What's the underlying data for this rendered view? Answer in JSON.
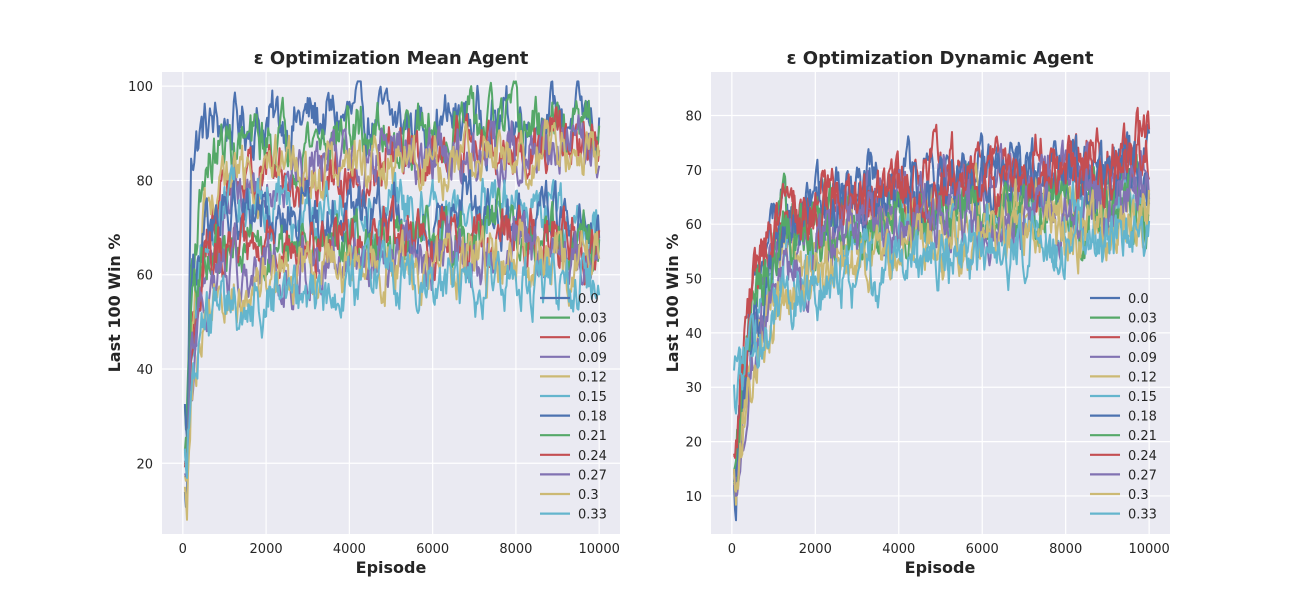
{
  "chart_data": [
    {
      "type": "line",
      "title": "ε Optimization Mean Agent",
      "xlabel": "Episode",
      "ylabel": "Last 100 Win %",
      "xlim": [
        -500,
        10500
      ],
      "ylim": [
        5,
        103
      ],
      "x_ticks": [
        0,
        2000,
        4000,
        6000,
        8000,
        10000
      ],
      "y_ticks": [
        20,
        40,
        60,
        80,
        100
      ],
      "grid": true,
      "legend_position": "lower-right",
      "series": [
        {
          "name": "0.0",
          "color": "#4C72B0",
          "x": [
            100,
            200,
            500,
            1000,
            2000,
            3000,
            4000,
            5000,
            6000,
            7000,
            8000,
            9000,
            10000
          ],
          "values": [
            12,
            87,
            91,
            92,
            92,
            93,
            93,
            92,
            92,
            93,
            93,
            94,
            92
          ]
        },
        {
          "name": "0.03",
          "color": "#55A868",
          "x": [
            100,
            200,
            500,
            1000,
            2000,
            3000,
            4000,
            5000,
            6000,
            7000,
            8000,
            9000,
            10000
          ],
          "values": [
            30,
            60,
            82,
            87,
            88,
            89,
            90,
            90,
            90,
            91,
            91,
            91,
            90
          ]
        },
        {
          "name": "0.06",
          "color": "#C44E52",
          "x": [
            100,
            200,
            500,
            1000,
            2000,
            3000,
            4000,
            5000,
            6000,
            7000,
            8000,
            9000,
            10000
          ],
          "values": [
            17,
            40,
            65,
            80,
            82,
            80,
            82,
            84,
            85,
            87,
            86,
            88,
            87
          ]
        },
        {
          "name": "0.09",
          "color": "#8172B2",
          "x": [
            100,
            200,
            500,
            1000,
            2000,
            3000,
            4000,
            5000,
            6000,
            7000,
            8000,
            9000,
            10000
          ],
          "values": [
            18,
            30,
            55,
            75,
            82,
            84,
            85,
            84,
            85,
            86,
            86,
            87,
            86
          ]
        },
        {
          "name": "0.12",
          "color": "#CCB974",
          "x": [
            100,
            200,
            500,
            1000,
            2000,
            3000,
            4000,
            5000,
            6000,
            7000,
            8000,
            9000,
            10000
          ],
          "values": [
            15,
            45,
            70,
            80,
            81,
            82,
            82,
            83,
            84,
            84,
            85,
            85,
            84
          ]
        },
        {
          "name": "0.15",
          "color": "#64B5CD",
          "x": [
            100,
            200,
            500,
            1000,
            2000,
            3000,
            4000,
            5000,
            6000,
            7000,
            8000,
            9000,
            10000
          ],
          "values": [
            20,
            50,
            68,
            72,
            74,
            73,
            72,
            73,
            73,
            74,
            74,
            73,
            72
          ]
        },
        {
          "name": "0.18",
          "color": "#4C72B0",
          "x": [
            100,
            200,
            500,
            1000,
            2000,
            3000,
            4000,
            5000,
            6000,
            7000,
            8000,
            9000,
            10000
          ],
          "values": [
            30,
            60,
            70,
            72,
            73,
            74,
            73,
            73,
            72,
            72,
            72,
            71,
            70
          ]
        },
        {
          "name": "0.21",
          "color": "#55A868",
          "x": [
            100,
            200,
            500,
            1000,
            2000,
            3000,
            4000,
            5000,
            6000,
            7000,
            8000,
            9000,
            10000
          ],
          "values": [
            20,
            50,
            62,
            65,
            66,
            67,
            67,
            68,
            68,
            68,
            67,
            68,
            67
          ]
        },
        {
          "name": "0.24",
          "color": "#C44E52",
          "x": [
            100,
            200,
            500,
            1000,
            2000,
            3000,
            4000,
            5000,
            6000,
            7000,
            8000,
            9000,
            10000
          ],
          "values": [
            17,
            45,
            60,
            64,
            65,
            66,
            67,
            67,
            67,
            67,
            68,
            68,
            67
          ]
        },
        {
          "name": "0.27",
          "color": "#8172B2",
          "x": [
            100,
            200,
            500,
            1000,
            2000,
            3000,
            4000,
            5000,
            6000,
            7000,
            8000,
            9000,
            10000
          ],
          "values": [
            15,
            40,
            55,
            60,
            62,
            63,
            64,
            64,
            64,
            64,
            65,
            65,
            64
          ]
        },
        {
          "name": "0.3",
          "color": "#CCB974",
          "x": [
            100,
            200,
            500,
            1000,
            2000,
            3000,
            4000,
            5000,
            6000,
            7000,
            8000,
            9000,
            10000
          ],
          "values": [
            12,
            35,
            50,
            55,
            58,
            60,
            61,
            61,
            62,
            62,
            62,
            62,
            62
          ]
        },
        {
          "name": "0.33",
          "color": "#64B5CD",
          "x": [
            100,
            200,
            500,
            1000,
            2000,
            3000,
            4000,
            5000,
            6000,
            7000,
            8000,
            9000,
            10000
          ],
          "values": [
            20,
            40,
            48,
            52,
            55,
            56,
            56,
            57,
            57,
            58,
            58,
            58,
            58
          ]
        }
      ]
    },
    {
      "type": "line",
      "title": "ε Optimization Dynamic Agent",
      "xlabel": "Episode",
      "ylabel": "Last 100 Win %",
      "xlim": [
        -500,
        10500
      ],
      "ylim": [
        3,
        88
      ],
      "x_ticks": [
        0,
        2000,
        4000,
        6000,
        8000,
        10000
      ],
      "y_ticks": [
        10,
        20,
        30,
        40,
        50,
        60,
        70,
        80
      ],
      "grid": true,
      "legend_position": "lower-right",
      "series": [
        {
          "name": "0.0",
          "color": "#4C72B0",
          "x": [
            100,
            200,
            500,
            1000,
            2000,
            3000,
            4000,
            5000,
            6000,
            7000,
            8000,
            9000,
            10000
          ],
          "values": [
            10,
            25,
            45,
            60,
            64,
            66,
            67,
            68,
            69,
            70,
            70,
            71,
            71
          ]
        },
        {
          "name": "0.03",
          "color": "#55A868",
          "x": [
            100,
            200,
            500,
            1000,
            2000,
            3000,
            4000,
            5000,
            6000,
            7000,
            8000,
            9000,
            10000
          ],
          "values": [
            10,
            28,
            48,
            58,
            61,
            62,
            63,
            63,
            64,
            64,
            65,
            65,
            65
          ]
        },
        {
          "name": "0.06",
          "color": "#C44E52",
          "x": [
            100,
            200,
            500,
            1000,
            2000,
            3000,
            4000,
            5000,
            6000,
            7000,
            8000,
            9000,
            10000
          ],
          "values": [
            15,
            30,
            52,
            60,
            64,
            67,
            68,
            70,
            71,
            72,
            72,
            73,
            76
          ]
        },
        {
          "name": "0.09",
          "color": "#8172B2",
          "x": [
            100,
            200,
            500,
            1000,
            2000,
            3000,
            4000,
            5000,
            6000,
            7000,
            8000,
            9000,
            10000
          ],
          "values": [
            10,
            20,
            40,
            55,
            60,
            63,
            64,
            65,
            66,
            67,
            68,
            68,
            69
          ]
        },
        {
          "name": "0.12",
          "color": "#CCB974",
          "x": [
            100,
            200,
            500,
            1000,
            2000,
            3000,
            4000,
            5000,
            6000,
            7000,
            8000,
            9000,
            10000
          ],
          "values": [
            12,
            22,
            35,
            48,
            54,
            57,
            59,
            60,
            61,
            62,
            62,
            63,
            63
          ]
        },
        {
          "name": "0.15",
          "color": "#64B5CD",
          "x": [
            100,
            200,
            500,
            1000,
            2000,
            3000,
            4000,
            5000,
            6000,
            7000,
            8000,
            9000,
            10000
          ],
          "values": [
            28,
            32,
            40,
            48,
            52,
            54,
            56,
            57,
            58,
            59,
            60,
            61,
            62
          ]
        },
        {
          "name": "0.18",
          "color": "#4C72B0",
          "x": [
            100,
            200,
            500,
            1000,
            2000,
            3000,
            4000,
            5000,
            6000,
            7000,
            8000,
            9000,
            10000
          ],
          "values": [
            10,
            25,
            42,
            56,
            62,
            64,
            65,
            66,
            67,
            67,
            68,
            68,
            68
          ]
        },
        {
          "name": "0.21",
          "color": "#55A868",
          "x": [
            100,
            200,
            500,
            1000,
            2000,
            3000,
            4000,
            5000,
            6000,
            7000,
            8000,
            9000,
            10000
          ],
          "values": [
            12,
            25,
            45,
            55,
            58,
            60,
            61,
            62,
            62,
            63,
            63,
            63,
            63
          ]
        },
        {
          "name": "0.24",
          "color": "#C44E52",
          "x": [
            100,
            200,
            500,
            1000,
            2000,
            3000,
            4000,
            5000,
            6000,
            7000,
            8000,
            9000,
            10000
          ],
          "values": [
            15,
            28,
            50,
            58,
            62,
            64,
            65,
            66,
            67,
            68,
            69,
            70,
            72
          ]
        },
        {
          "name": "0.27",
          "color": "#8172B2",
          "x": [
            100,
            200,
            500,
            1000,
            2000,
            3000,
            4000,
            5000,
            6000,
            7000,
            8000,
            9000,
            10000
          ],
          "values": [
            12,
            18,
            35,
            48,
            54,
            57,
            59,
            60,
            61,
            62,
            63,
            64,
            65
          ]
        },
        {
          "name": "0.3",
          "color": "#CCB974",
          "x": [
            100,
            200,
            500,
            1000,
            2000,
            3000,
            4000,
            5000,
            6000,
            7000,
            8000,
            9000,
            10000
          ],
          "values": [
            12,
            20,
            32,
            44,
            50,
            53,
            55,
            56,
            57,
            58,
            58,
            59,
            60
          ]
        },
        {
          "name": "0.33",
          "color": "#64B5CD",
          "x": [
            100,
            200,
            500,
            1000,
            2000,
            3000,
            4000,
            5000,
            6000,
            7000,
            8000,
            9000,
            10000
          ],
          "values": [
            30,
            32,
            38,
            44,
            48,
            50,
            52,
            53,
            54,
            55,
            56,
            57,
            58
          ]
        }
      ]
    }
  ]
}
